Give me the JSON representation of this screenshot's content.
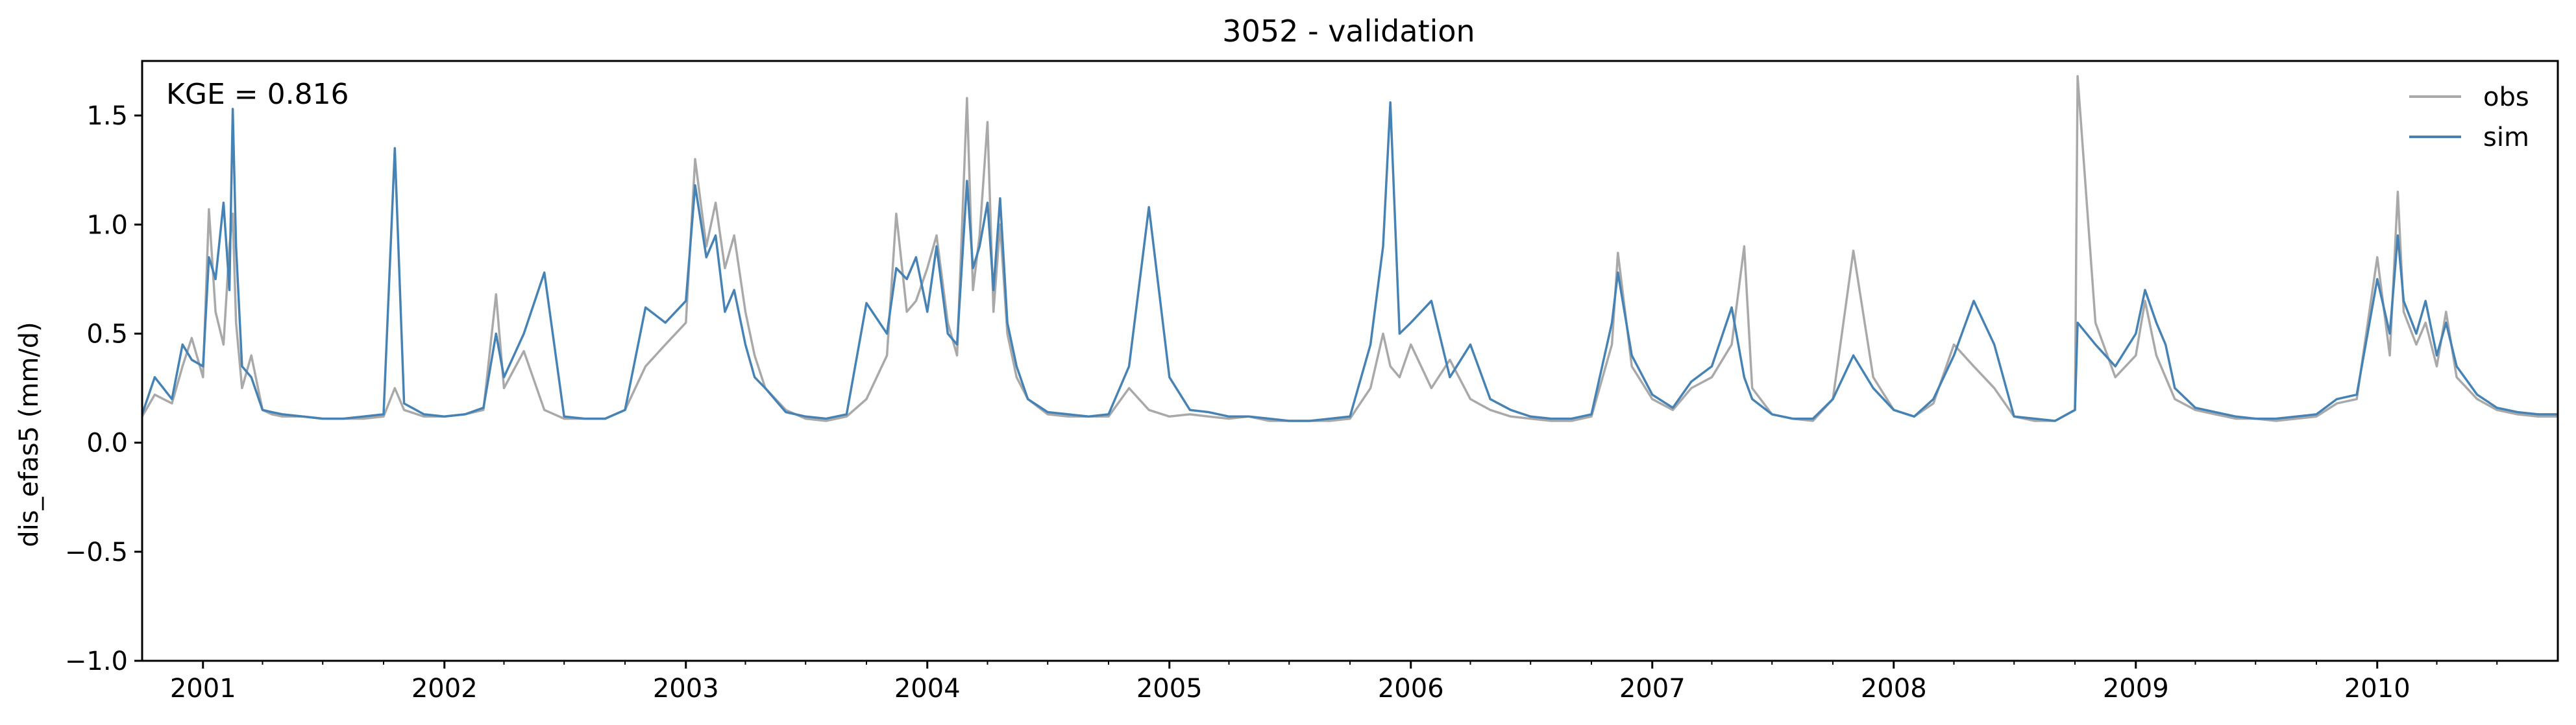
{
  "chart_data": {
    "type": "line",
    "title": "3052 - validation",
    "xlabel": "",
    "ylabel": "dis_efas5 (mm/d)",
    "annotation": "KGE = 0.816",
    "legend_position": "upper-right",
    "grid": false,
    "xlim": [
      "2000-10-01",
      "2010-10-01"
    ],
    "ylim": [
      -1.0,
      1.75
    ],
    "x_ticks": [
      "2001",
      "2002",
      "2003",
      "2004",
      "2005",
      "2006",
      "2007",
      "2008",
      "2009",
      "2010"
    ],
    "y_ticks": [
      "1.5",
      "1.0",
      "0.5",
      "0.0",
      "−0.5",
      "−1.0"
    ],
    "y_tick_values": [
      1.5,
      1.0,
      0.5,
      0.0,
      -0.5,
      -1.0
    ],
    "series": [
      {
        "name": "obs",
        "color": "#a9a9a9",
        "x": [
          "2000-10-01",
          "2000-10-20",
          "2000-11-15",
          "2000-12-01",
          "2000-12-15",
          "2001-01-01",
          "2001-01-10",
          "2001-01-20",
          "2001-02-01",
          "2001-02-10",
          "2001-02-15",
          "2001-02-20",
          "2001-03-01",
          "2001-03-15",
          "2001-04-01",
          "2001-04-15",
          "2001-05-01",
          "2001-06-01",
          "2001-07-01",
          "2001-08-01",
          "2001-09-01",
          "2001-10-01",
          "2001-10-18",
          "2001-11-01",
          "2001-12-01",
          "2002-01-01",
          "2002-02-01",
          "2002-03-01",
          "2002-03-20",
          "2002-04-01",
          "2002-05-01",
          "2002-06-01",
          "2002-07-01",
          "2002-08-01",
          "2002-09-01",
          "2002-10-01",
          "2002-11-01",
          "2002-12-01",
          "2003-01-01",
          "2003-01-15",
          "2003-02-01",
          "2003-02-15",
          "2003-03-01",
          "2003-03-15",
          "2003-04-01",
          "2003-04-15",
          "2003-05-01",
          "2003-06-01",
          "2003-07-01",
          "2003-08-01",
          "2003-09-01",
          "2003-10-01",
          "2003-11-01",
          "2003-11-15",
          "2003-12-01",
          "2003-12-15",
          "2004-01-01",
          "2004-01-15",
          "2004-02-01",
          "2004-02-15",
          "2004-03-01",
          "2004-03-10",
          "2004-03-20",
          "2004-04-01",
          "2004-04-10",
          "2004-04-20",
          "2004-05-01",
          "2004-05-15",
          "2004-06-01",
          "2004-07-01",
          "2004-08-01",
          "2004-09-01",
          "2004-10-01",
          "2004-11-01",
          "2004-12-01",
          "2005-01-01",
          "2005-02-01",
          "2005-03-01",
          "2005-04-01",
          "2005-05-01",
          "2005-06-01",
          "2005-07-01",
          "2005-08-01",
          "2005-09-01",
          "2005-10-01",
          "2005-11-01",
          "2005-11-20",
          "2005-12-01",
          "2005-12-15",
          "2006-01-01",
          "2006-02-01",
          "2006-03-01",
          "2006-04-01",
          "2006-05-01",
          "2006-06-01",
          "2006-07-01",
          "2006-08-01",
          "2006-09-01",
          "2006-10-01",
          "2006-11-01",
          "2006-11-10",
          "2006-12-01",
          "2007-01-01",
          "2007-02-01",
          "2007-03-01",
          "2007-04-01",
          "2007-05-01",
          "2007-05-20",
          "2007-06-01",
          "2007-07-01",
          "2007-08-01",
          "2007-09-01",
          "2007-10-01",
          "2007-11-01",
          "2007-12-01",
          "2008-01-01",
          "2008-02-01",
          "2008-03-01",
          "2008-04-01",
          "2008-05-01",
          "2008-06-01",
          "2008-07-01",
          "2008-08-01",
          "2008-09-01",
          "2008-10-01",
          "2008-10-05",
          "2008-11-01",
          "2008-12-01",
          "2009-01-01",
          "2009-01-15",
          "2009-02-01",
          "2009-02-15",
          "2009-03-01",
          "2009-04-01",
          "2009-05-01",
          "2009-06-01",
          "2009-07-01",
          "2009-08-01",
          "2009-09-01",
          "2009-10-01",
          "2009-11-01",
          "2009-12-01",
          "2010-01-01",
          "2010-01-20",
          "2010-02-01",
          "2010-02-10",
          "2010-03-01",
          "2010-03-15",
          "2010-04-01",
          "2010-04-15",
          "2010-05-01",
          "2010-06-01",
          "2010-07-01",
          "2010-08-01",
          "2010-09-01",
          "2010-10-01"
        ],
        "values": [
          0.12,
          0.22,
          0.18,
          0.35,
          0.48,
          0.3,
          1.07,
          0.6,
          0.45,
          0.9,
          1.05,
          0.55,
          0.25,
          0.4,
          0.15,
          0.13,
          0.12,
          0.12,
          0.11,
          0.11,
          0.11,
          0.12,
          0.25,
          0.15,
          0.12,
          0.12,
          0.13,
          0.15,
          0.68,
          0.25,
          0.42,
          0.15,
          0.11,
          0.11,
          0.11,
          0.15,
          0.35,
          0.45,
          0.55,
          1.3,
          0.9,
          1.1,
          0.8,
          0.95,
          0.6,
          0.4,
          0.25,
          0.15,
          0.11,
          0.1,
          0.12,
          0.2,
          0.4,
          1.05,
          0.6,
          0.65,
          0.8,
          0.95,
          0.55,
          0.4,
          1.58,
          0.7,
          0.95,
          1.47,
          0.6,
          1.0,
          0.5,
          0.3,
          0.2,
          0.13,
          0.12,
          0.12,
          0.12,
          0.25,
          0.15,
          0.12,
          0.13,
          0.12,
          0.11,
          0.12,
          0.1,
          0.1,
          0.1,
          0.1,
          0.11,
          0.25,
          0.5,
          0.35,
          0.3,
          0.45,
          0.25,
          0.38,
          0.2,
          0.15,
          0.12,
          0.11,
          0.1,
          0.1,
          0.12,
          0.45,
          0.87,
          0.35,
          0.2,
          0.15,
          0.25,
          0.3,
          0.45,
          0.9,
          0.25,
          0.13,
          0.11,
          0.1,
          0.2,
          0.88,
          0.3,
          0.15,
          0.12,
          0.18,
          0.45,
          0.35,
          0.25,
          0.12,
          0.1,
          0.1,
          0.15,
          1.68,
          0.55,
          0.3,
          0.4,
          0.65,
          0.4,
          0.3,
          0.2,
          0.15,
          0.13,
          0.11,
          0.11,
          0.1,
          0.11,
          0.12,
          0.18,
          0.2,
          0.85,
          0.4,
          1.15,
          0.6,
          0.45,
          0.55,
          0.35,
          0.6,
          0.3,
          0.2,
          0.15,
          0.13,
          0.12,
          0.12
        ]
      },
      {
        "name": "sim",
        "color": "#4682b4",
        "x": [
          "2000-10-01",
          "2000-10-20",
          "2000-11-15",
          "2000-12-01",
          "2000-12-15",
          "2001-01-01",
          "2001-01-10",
          "2001-01-20",
          "2001-02-01",
          "2001-02-10",
          "2001-02-15",
          "2001-02-20",
          "2001-03-01",
          "2001-03-15",
          "2001-04-01",
          "2001-04-15",
          "2001-05-01",
          "2001-06-01",
          "2001-07-01",
          "2001-08-01",
          "2001-09-01",
          "2001-10-01",
          "2001-10-18",
          "2001-11-01",
          "2001-12-01",
          "2002-01-01",
          "2002-02-01",
          "2002-03-01",
          "2002-03-20",
          "2002-04-01",
          "2002-05-01",
          "2002-06-01",
          "2002-07-01",
          "2002-08-01",
          "2002-09-01",
          "2002-10-01",
          "2002-11-01",
          "2002-12-01",
          "2003-01-01",
          "2003-01-15",
          "2003-02-01",
          "2003-02-15",
          "2003-03-01",
          "2003-03-15",
          "2003-04-01",
          "2003-04-15",
          "2003-05-01",
          "2003-06-01",
          "2003-07-01",
          "2003-08-01",
          "2003-09-01",
          "2003-10-01",
          "2003-11-01",
          "2003-11-15",
          "2003-12-01",
          "2003-12-15",
          "2004-01-01",
          "2004-01-15",
          "2004-02-01",
          "2004-02-15",
          "2004-03-01",
          "2004-03-10",
          "2004-03-20",
          "2004-04-01",
          "2004-04-10",
          "2004-04-20",
          "2004-05-01",
          "2004-05-15",
          "2004-06-01",
          "2004-07-01",
          "2004-08-01",
          "2004-09-01",
          "2004-10-01",
          "2004-11-01",
          "2004-12-01",
          "2005-01-01",
          "2005-02-01",
          "2005-03-01",
          "2005-04-01",
          "2005-05-01",
          "2005-06-01",
          "2005-07-01",
          "2005-08-01",
          "2005-09-01",
          "2005-10-01",
          "2005-11-01",
          "2005-11-20",
          "2005-12-01",
          "2005-12-15",
          "2006-01-01",
          "2006-02-01",
          "2006-03-01",
          "2006-04-01",
          "2006-05-01",
          "2006-06-01",
          "2006-07-01",
          "2006-08-01",
          "2006-09-01",
          "2006-10-01",
          "2006-11-01",
          "2006-11-10",
          "2006-12-01",
          "2007-01-01",
          "2007-02-01",
          "2007-03-01",
          "2007-04-01",
          "2007-05-01",
          "2007-05-20",
          "2007-06-01",
          "2007-07-01",
          "2007-08-01",
          "2007-09-01",
          "2007-10-01",
          "2007-11-01",
          "2007-12-01",
          "2008-01-01",
          "2008-02-01",
          "2008-03-01",
          "2008-04-01",
          "2008-05-01",
          "2008-06-01",
          "2008-07-01",
          "2008-08-01",
          "2008-09-01",
          "2008-10-01",
          "2008-10-05",
          "2008-11-01",
          "2008-12-01",
          "2009-01-01",
          "2009-01-15",
          "2009-02-01",
          "2009-02-15",
          "2009-03-01",
          "2009-04-01",
          "2009-05-01",
          "2009-06-01",
          "2009-07-01",
          "2009-08-01",
          "2009-09-01",
          "2009-10-01",
          "2009-11-01",
          "2009-12-01",
          "2010-01-01",
          "2010-01-20",
          "2010-02-01",
          "2010-02-10",
          "2010-03-01",
          "2010-03-15",
          "2010-04-01",
          "2010-04-15",
          "2010-05-01",
          "2010-06-01",
          "2010-07-01",
          "2010-08-01",
          "2010-09-01",
          "2010-10-01"
        ],
        "values": [
          0.13,
          0.3,
          0.2,
          0.45,
          0.38,
          0.35,
          0.85,
          0.75,
          1.1,
          0.7,
          1.53,
          0.9,
          0.35,
          0.3,
          0.15,
          0.14,
          0.13,
          0.12,
          0.11,
          0.11,
          0.12,
          0.13,
          1.35,
          0.18,
          0.13,
          0.12,
          0.13,
          0.16,
          0.5,
          0.3,
          0.5,
          0.78,
          0.12,
          0.11,
          0.11,
          0.15,
          0.62,
          0.55,
          0.65,
          1.18,
          0.85,
          0.95,
          0.6,
          0.7,
          0.45,
          0.3,
          0.25,
          0.14,
          0.12,
          0.11,
          0.13,
          0.64,
          0.5,
          0.8,
          0.75,
          0.85,
          0.6,
          0.9,
          0.5,
          0.45,
          1.2,
          0.8,
          0.9,
          1.1,
          0.7,
          1.12,
          0.55,
          0.35,
          0.2,
          0.14,
          0.13,
          0.12,
          0.13,
          0.35,
          1.08,
          0.3,
          0.15,
          0.14,
          0.12,
          0.12,
          0.11,
          0.1,
          0.1,
          0.11,
          0.12,
          0.45,
          0.9,
          1.56,
          0.5,
          0.55,
          0.65,
          0.3,
          0.45,
          0.2,
          0.15,
          0.12,
          0.11,
          0.11,
          0.13,
          0.55,
          0.78,
          0.4,
          0.22,
          0.16,
          0.28,
          0.35,
          0.62,
          0.3,
          0.2,
          0.13,
          0.11,
          0.11,
          0.2,
          0.4,
          0.25,
          0.15,
          0.12,
          0.2,
          0.4,
          0.65,
          0.45,
          0.12,
          0.11,
          0.1,
          0.15,
          0.55,
          0.45,
          0.35,
          0.5,
          0.7,
          0.55,
          0.45,
          0.25,
          0.16,
          0.14,
          0.12,
          0.11,
          0.11,
          0.12,
          0.13,
          0.2,
          0.22,
          0.75,
          0.5,
          0.95,
          0.65,
          0.5,
          0.65,
          0.4,
          0.55,
          0.35,
          0.22,
          0.16,
          0.14,
          0.13,
          0.13
        ]
      }
    ]
  }
}
